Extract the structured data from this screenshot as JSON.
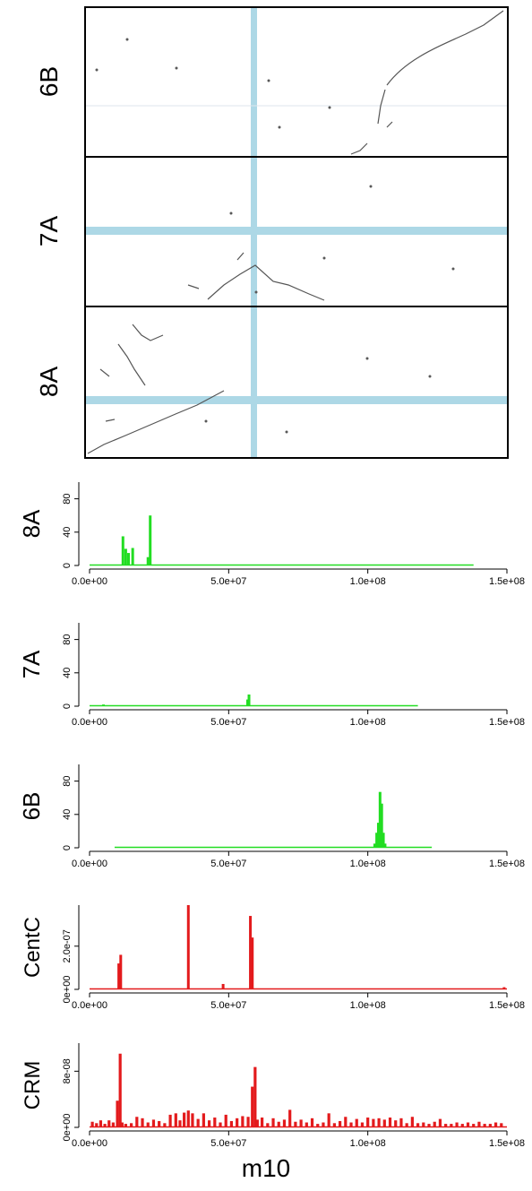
{
  "colors": {
    "green": "#22dd22",
    "red": "#e31a1c",
    "highlight": "#add8e6",
    "dot": "#444444"
  },
  "dotplot": {
    "panels": [
      "6B",
      "7A",
      "8A"
    ]
  },
  "chart_data": [
    {
      "type": "bar",
      "ylabel": "8A",
      "xlim": [
        0,
        150000000
      ],
      "ylim": [
        0,
        100
      ],
      "yticks": [
        "0",
        "40",
        "80"
      ],
      "xticks": [
        "0.0e+00",
        "5.0e+07",
        "1.0e+08",
        "1.5e+08"
      ],
      "baseline_end": 138000000,
      "x": [
        12000000,
        13000000,
        14000000,
        15500000,
        21000000,
        21800000
      ],
      "values": [
        35,
        20,
        15,
        21,
        10,
        60
      ]
    },
    {
      "type": "bar",
      "ylabel": "7A",
      "xlim": [
        0,
        150000000
      ],
      "ylim": [
        0,
        100
      ],
      "yticks": [
        "0",
        "40",
        "80"
      ],
      "xticks": [
        "0.0e+00",
        "5.0e+07",
        "1.0e+08",
        "1.5e+08"
      ],
      "baseline_end": 118000000,
      "x": [
        5000000,
        56800000,
        57300000
      ],
      "values": [
        2,
        8,
        14
      ]
    },
    {
      "type": "bar",
      "ylabel": "6B",
      "xlim": [
        0,
        150000000
      ],
      "ylim": [
        0,
        100
      ],
      "yticks": [
        "0",
        "40",
        "80"
      ],
      "xticks": [
        "0.0e+00",
        "5.0e+07",
        "1.0e+08",
        "1.5e+08"
      ],
      "baseline_start": 9000000,
      "baseline_end": 123000000,
      "x": [
        102500000,
        103200000,
        103800000,
        104400000,
        105000000,
        105600000,
        106200000
      ],
      "values": [
        5,
        18,
        30,
        67,
        53,
        18,
        5
      ]
    },
    {
      "type": "bar",
      "ylabel": "CentC",
      "xlim": [
        0,
        150000000
      ],
      "ylim": [
        0,
        3.9e-07
      ],
      "yticks": [
        "0e+00",
        "2.0e-07"
      ],
      "xticks": [
        "0.0e+00",
        "5.0e+07",
        "1.0e+08",
        "1.5e+08"
      ],
      "baseline_end": 150000000,
      "x": [
        10500000,
        11200000,
        35500000,
        48000000,
        57800000,
        58500000,
        149000000
      ],
      "values": [
        1.2e-07,
        1.6e-07,
        3.9e-07,
        2.5e-08,
        3.4e-07,
        2.4e-07,
        1e-08
      ]
    },
    {
      "type": "bar",
      "ylabel": "CRM",
      "xlim": [
        0,
        150000000
      ],
      "ylim": [
        0,
        1.2e-07
      ],
      "yticks": [
        "0e+00",
        "8e-08"
      ],
      "xticks": [
        "0.0e+00",
        "5.0e+07",
        "1.0e+08",
        "1.5e+08"
      ],
      "baseline_end": 150000000,
      "x": [
        1000000,
        2500000,
        4000000,
        5500000,
        7000000,
        8500000,
        10000000,
        11000000,
        11700000,
        13000000,
        15000000,
        17000000,
        19000000,
        21000000,
        23000000,
        25000000,
        27000000,
        29000000,
        31000000,
        32500000,
        34000000,
        35500000,
        37000000,
        39000000,
        41000000,
        43000000,
        45000000,
        47000000,
        49000000,
        51000000,
        53000000,
        55000000,
        57000000,
        58500000,
        59500000,
        60300000,
        62000000,
        64000000,
        66000000,
        68000000,
        70000000,
        72000000,
        74000000,
        76000000,
        78000000,
        80000000,
        82000000,
        84000000,
        86000000,
        88000000,
        90000000,
        92000000,
        94000000,
        96000000,
        98000000,
        100000000,
        102000000,
        104000000,
        106000000,
        108000000,
        110000000,
        112000000,
        114000000,
        116000000,
        118000000,
        120000000,
        122000000,
        124000000,
        126000000,
        128000000,
        130000000,
        132000000,
        134000000,
        136000000,
        138000000,
        140000000,
        142000000,
        144000000,
        146000000,
        148000000
      ],
      "values": [
        8e-09,
        6e-09,
        1e-08,
        5e-09,
        1e-08,
        7e-09,
        3.8e-08,
        1.05e-07,
        7e-09,
        5e-09,
        6e-09,
        1.5e-08,
        1.3e-08,
        7e-09,
        1.1e-08,
        9e-09,
        6e-09,
        1.8e-08,
        2e-08,
        1e-08,
        2.1e-08,
        2.4e-08,
        2e-08,
        1.2e-08,
        2e-08,
        1e-08,
        1.4e-08,
        7e-09,
        1.8e-08,
        9e-09,
        1.3e-08,
        1.6e-08,
        1.5e-08,
        5.8e-08,
        8.6e-08,
        1.1e-08,
        1.4e-08,
        6e-09,
        1.3e-08,
        8e-09,
        1.1e-08,
        2.5e-08,
        8e-09,
        1.1e-08,
        7e-09,
        1.3e-08,
        5e-09,
        7e-09,
        2e-08,
        6e-09,
        9e-09,
        1.5e-08,
        7e-09,
        1.2e-08,
        7e-09,
        1.4e-08,
        1.2e-08,
        1.3e-08,
        1.1e-08,
        1.4e-08,
        1e-08,
        1.3e-08,
        6e-09,
        1.5e-08,
        6e-09,
        7e-09,
        5e-09,
        8e-09,
        1.2e-08,
        5e-09,
        5e-09,
        7e-09,
        5e-09,
        7e-09,
        5e-09,
        8e-09,
        5e-09,
        5e-09,
        7e-09,
        6e-09
      ]
    }
  ],
  "xlabel": "m10"
}
